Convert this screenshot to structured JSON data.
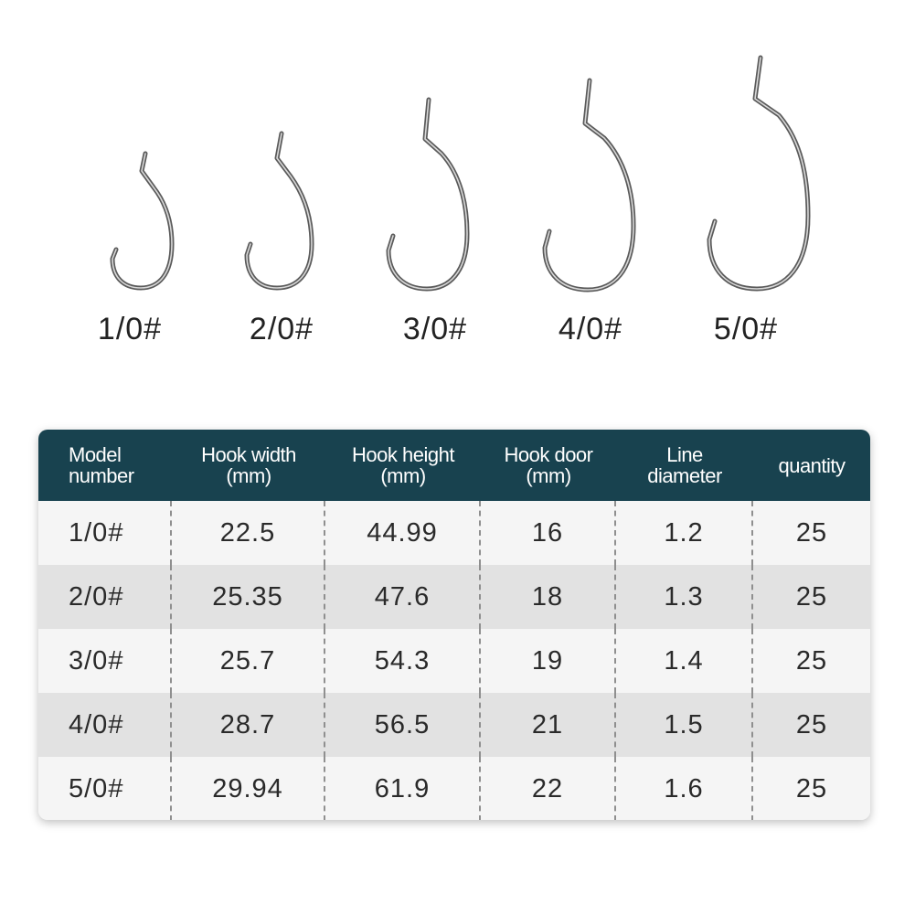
{
  "hooks": [
    {
      "label": "1/0#"
    },
    {
      "label": "2/0#"
    },
    {
      "label": "3/0#"
    },
    {
      "label": "4/0#"
    },
    {
      "label": "5/0#"
    }
  ],
  "table": {
    "headers": [
      [
        "Model",
        "number"
      ],
      [
        "Hook width",
        "(mm)"
      ],
      [
        "Hook height",
        "(mm)"
      ],
      [
        "Hook door",
        "(mm)"
      ],
      [
        "Line",
        "diameter"
      ],
      [
        "quantity"
      ]
    ],
    "rows": [
      [
        "1/0#",
        "22.5",
        "44.99",
        "16",
        "1.2",
        "25"
      ],
      [
        "2/0#",
        "25.35",
        "47.6",
        "18",
        "1.3",
        "25"
      ],
      [
        "3/0#",
        "25.7",
        "54.3",
        "19",
        "1.4",
        "25"
      ],
      [
        "4/0#",
        "28.7",
        "56.5",
        "21",
        "1.5",
        "25"
      ],
      [
        "5/0#",
        "29.94",
        "61.9",
        "22",
        "1.6",
        "25"
      ]
    ]
  },
  "colors": {
    "header_bg": "#18424f",
    "row_light": "#f5f5f5",
    "row_dark": "#e2e2e2",
    "hook_metal": "#555555"
  }
}
